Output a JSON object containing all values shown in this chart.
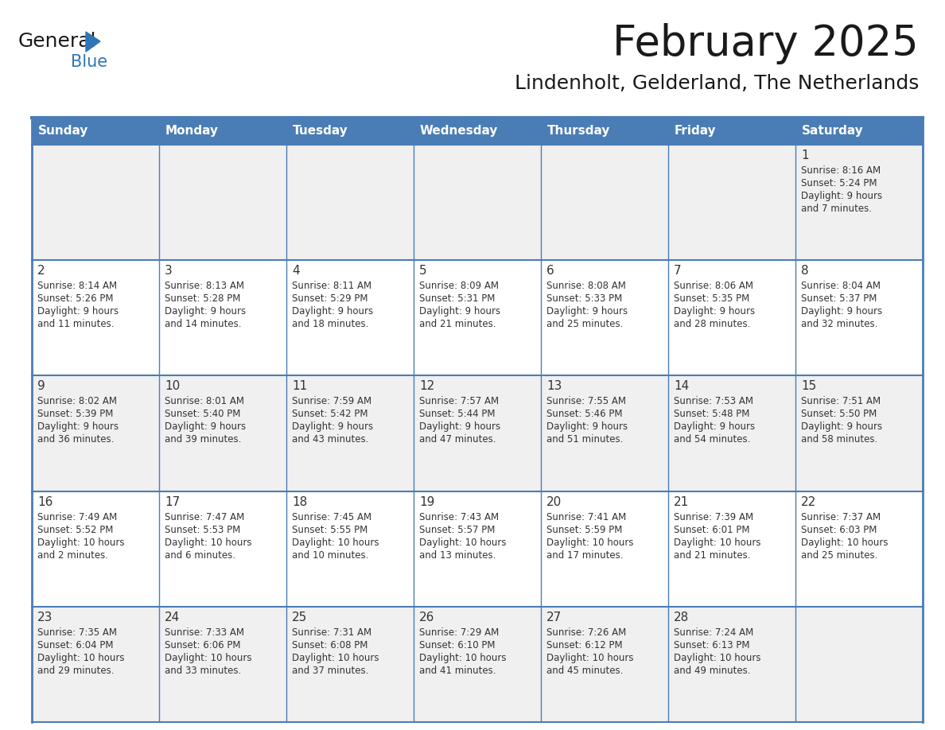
{
  "title": "February 2025",
  "subtitle": "Lindenholt, Gelderland, The Netherlands",
  "days_of_week": [
    "Sunday",
    "Monday",
    "Tuesday",
    "Wednesday",
    "Thursday",
    "Friday",
    "Saturday"
  ],
  "header_bg": "#4A7DB5",
  "header_text": "#FFFFFF",
  "cell_bg_odd": "#F0F0F0",
  "cell_bg_even": "#FFFFFF",
  "cell_border": "#4A7DB5",
  "day_num_color": "#333333",
  "text_color": "#333333",
  "title_color": "#1a1a1a",
  "logo_general_color": "#1a1a1a",
  "logo_blue_color": "#2E75B6",
  "calendar_data": [
    [
      null,
      null,
      null,
      null,
      null,
      null,
      {
        "day": 1,
        "sunrise": "8:16 AM",
        "sunset": "5:24 PM",
        "daylight": "9 hours and 7 minutes"
      }
    ],
    [
      {
        "day": 2,
        "sunrise": "8:14 AM",
        "sunset": "5:26 PM",
        "daylight": "9 hours and 11 minutes"
      },
      {
        "day": 3,
        "sunrise": "8:13 AM",
        "sunset": "5:28 PM",
        "daylight": "9 hours and 14 minutes"
      },
      {
        "day": 4,
        "sunrise": "8:11 AM",
        "sunset": "5:29 PM",
        "daylight": "9 hours and 18 minutes"
      },
      {
        "day": 5,
        "sunrise": "8:09 AM",
        "sunset": "5:31 PM",
        "daylight": "9 hours and 21 minutes"
      },
      {
        "day": 6,
        "sunrise": "8:08 AM",
        "sunset": "5:33 PM",
        "daylight": "9 hours and 25 minutes"
      },
      {
        "day": 7,
        "sunrise": "8:06 AM",
        "sunset": "5:35 PM",
        "daylight": "9 hours and 28 minutes"
      },
      {
        "day": 8,
        "sunrise": "8:04 AM",
        "sunset": "5:37 PM",
        "daylight": "9 hours and 32 minutes"
      }
    ],
    [
      {
        "day": 9,
        "sunrise": "8:02 AM",
        "sunset": "5:39 PM",
        "daylight": "9 hours and 36 minutes"
      },
      {
        "day": 10,
        "sunrise": "8:01 AM",
        "sunset": "5:40 PM",
        "daylight": "9 hours and 39 minutes"
      },
      {
        "day": 11,
        "sunrise": "7:59 AM",
        "sunset": "5:42 PM",
        "daylight": "9 hours and 43 minutes"
      },
      {
        "day": 12,
        "sunrise": "7:57 AM",
        "sunset": "5:44 PM",
        "daylight": "9 hours and 47 minutes"
      },
      {
        "day": 13,
        "sunrise": "7:55 AM",
        "sunset": "5:46 PM",
        "daylight": "9 hours and 51 minutes"
      },
      {
        "day": 14,
        "sunrise": "7:53 AM",
        "sunset": "5:48 PM",
        "daylight": "9 hours and 54 minutes"
      },
      {
        "day": 15,
        "sunrise": "7:51 AM",
        "sunset": "5:50 PM",
        "daylight": "9 hours and 58 minutes"
      }
    ],
    [
      {
        "day": 16,
        "sunrise": "7:49 AM",
        "sunset": "5:52 PM",
        "daylight": "10 hours and 2 minutes"
      },
      {
        "day": 17,
        "sunrise": "7:47 AM",
        "sunset": "5:53 PM",
        "daylight": "10 hours and 6 minutes"
      },
      {
        "day": 18,
        "sunrise": "7:45 AM",
        "sunset": "5:55 PM",
        "daylight": "10 hours and 10 minutes"
      },
      {
        "day": 19,
        "sunrise": "7:43 AM",
        "sunset": "5:57 PM",
        "daylight": "10 hours and 13 minutes"
      },
      {
        "day": 20,
        "sunrise": "7:41 AM",
        "sunset": "5:59 PM",
        "daylight": "10 hours and 17 minutes"
      },
      {
        "day": 21,
        "sunrise": "7:39 AM",
        "sunset": "6:01 PM",
        "daylight": "10 hours and 21 minutes"
      },
      {
        "day": 22,
        "sunrise": "7:37 AM",
        "sunset": "6:03 PM",
        "daylight": "10 hours and 25 minutes"
      }
    ],
    [
      {
        "day": 23,
        "sunrise": "7:35 AM",
        "sunset": "6:04 PM",
        "daylight": "10 hours and 29 minutes"
      },
      {
        "day": 24,
        "sunrise": "7:33 AM",
        "sunset": "6:06 PM",
        "daylight": "10 hours and 33 minutes"
      },
      {
        "day": 25,
        "sunrise": "7:31 AM",
        "sunset": "6:08 PM",
        "daylight": "10 hours and 37 minutes"
      },
      {
        "day": 26,
        "sunrise": "7:29 AM",
        "sunset": "6:10 PM",
        "daylight": "10 hours and 41 minutes"
      },
      {
        "day": 27,
        "sunrise": "7:26 AM",
        "sunset": "6:12 PM",
        "daylight": "10 hours and 45 minutes"
      },
      {
        "day": 28,
        "sunrise": "7:24 AM",
        "sunset": "6:13 PM",
        "daylight": "10 hours and 49 minutes"
      },
      null
    ]
  ],
  "num_rows": 5,
  "num_cols": 7
}
